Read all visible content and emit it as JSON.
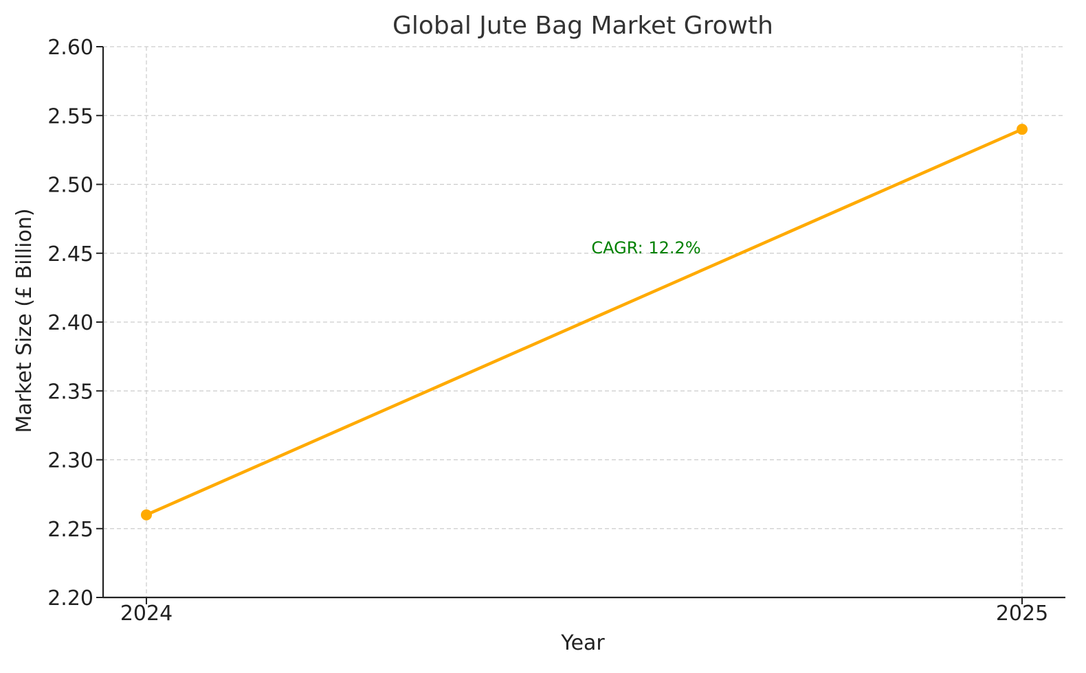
{
  "chart_data": {
    "type": "line",
    "title": "Global Jute Bag Market Growth",
    "xlabel": "Year",
    "ylabel": "Market Size (£ Billion)",
    "categories": [
      "2024",
      "2025"
    ],
    "series": [
      {
        "values": [
          2.26,
          2.54
        ],
        "color": "#FFAA00"
      }
    ],
    "ylim": [
      2.2,
      2.6
    ],
    "yticks": [
      "2.20",
      "2.25",
      "2.30",
      "2.35",
      "2.40",
      "2.45",
      "2.50",
      "2.55",
      "2.60"
    ],
    "grid": true,
    "annotation": {
      "text": "CAGR: 12.2%",
      "color": "#008000",
      "x": 2024.5,
      "y": 2.45
    }
  }
}
